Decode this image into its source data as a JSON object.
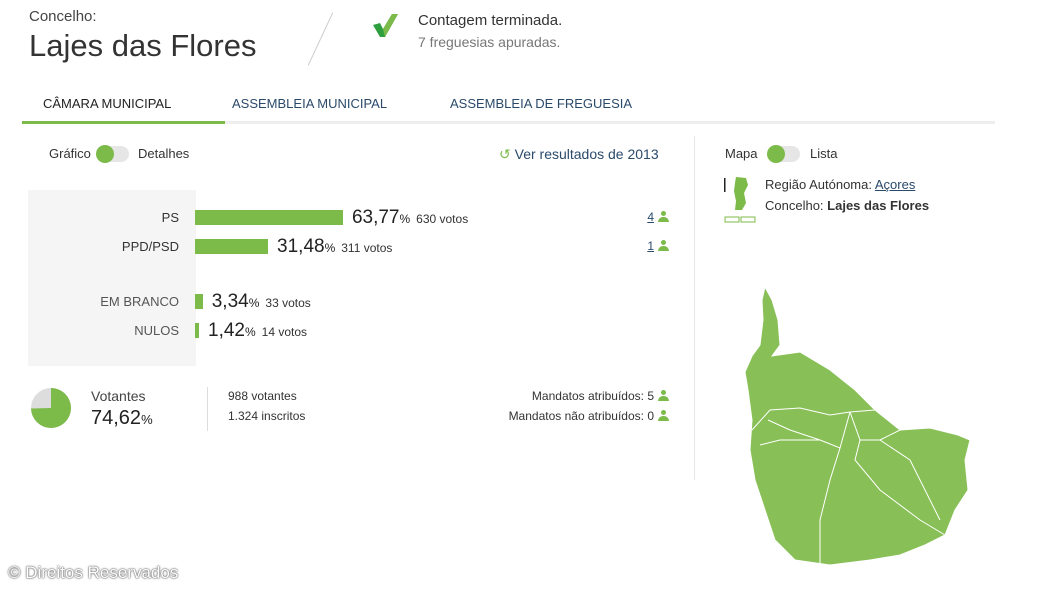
{
  "header": {
    "label": "Concelho:",
    "title": "Lajes das Flores",
    "status": "Contagem terminada.",
    "substatus": "7 freguesias apuradas.",
    "status_icon": "check-icon"
  },
  "tabs": [
    {
      "label": "CÂMARA MUNICIPAL",
      "active": true
    },
    {
      "label": "ASSEMBLEIA MUNICIPAL",
      "active": false
    },
    {
      "label": "ASSEMBLEIA DE FREGUESIA",
      "active": false
    }
  ],
  "view_toggle": {
    "left": "Gráfico",
    "right": "Detalhes",
    "selected": "Gráfico"
  },
  "previous_link": "Ver resultados de 2013",
  "results": [
    {
      "party": "PS",
      "pct": 63.77,
      "pct_text": "63,77",
      "votes": "630 votos",
      "mandates": "4"
    },
    {
      "party": "PPD/PSD",
      "pct": 31.48,
      "pct_text": "31,48",
      "votes": "311 votos",
      "mandates": "1"
    },
    {
      "party": "EM BRANCO",
      "pct": 3.34,
      "pct_text": "3,34",
      "votes": "33 votos"
    },
    {
      "party": "NULOS",
      "pct": 1.42,
      "pct_text": "1,42",
      "votes": "14 votos"
    }
  ],
  "pct_sign": "%",
  "turnout": {
    "label": "Votantes",
    "pct": 74.62,
    "pct_text": "74,62",
    "voters": "988 votantes",
    "registered": "1.324 inscritos"
  },
  "mandates": {
    "assigned": "Mandatos atribuídos: 5",
    "unassigned": "Mandatos não atribuídos: 0"
  },
  "map_toggle": {
    "left": "Mapa",
    "right": "Lista",
    "selected": "Mapa"
  },
  "location": {
    "region_label": "Região Autónoma:",
    "region": "Açores",
    "municipality_label": "Concelho:",
    "municipality": "Lajes das Flores"
  },
  "colors": {
    "accent": "#7cba4a",
    "map": "#88c057"
  },
  "footer": "© Direitos Reservados"
}
